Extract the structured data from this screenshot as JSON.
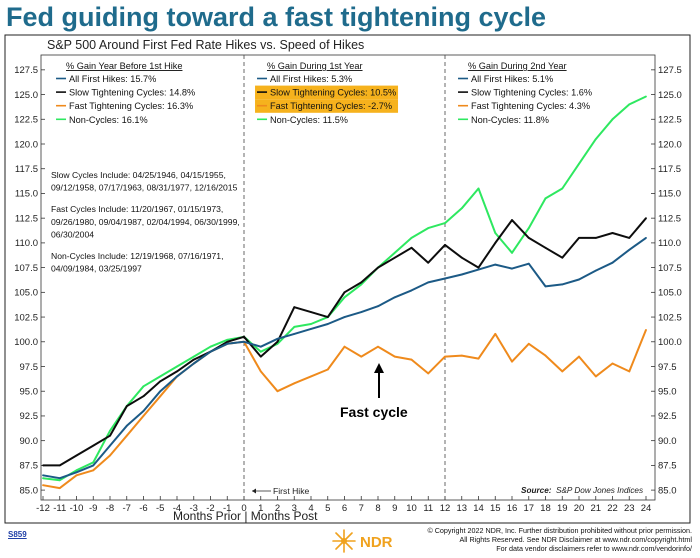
{
  "headline": "Fed guiding toward a fast tightening cycle",
  "chart_data": {
    "type": "line",
    "title": "S&P 500 Around First Fed Rate Hikes vs. Speed of Hikes",
    "xlabel": "Months Prior | Months Post",
    "ylabel": "",
    "xlim": [
      -12,
      24
    ],
    "ylim": [
      84,
      129
    ],
    "x_ticks": [
      -12,
      -11,
      -10,
      -9,
      -8,
      -7,
      -6,
      -5,
      -4,
      -3,
      -2,
      -1,
      0,
      1,
      2,
      3,
      4,
      5,
      6,
      7,
      8,
      9,
      10,
      11,
      12,
      13,
      14,
      15,
      16,
      17,
      18,
      19,
      20,
      21,
      22,
      23,
      24
    ],
    "y_ticks": [
      "85.0",
      "87.5",
      "90.0",
      "92.5",
      "95.0",
      "97.5",
      "100.0",
      "102.5",
      "105.0",
      "107.5",
      "110.0",
      "112.5",
      "115.0",
      "117.5",
      "120.0",
      "122.5",
      "125.0",
      "127.5"
    ],
    "vertical_lines": [
      0,
      12
    ],
    "series": [
      {
        "name": "All First Hikes",
        "color": "#1c5a86",
        "x": [
          -12,
          -11,
          -10,
          -9,
          -8,
          -7,
          -6,
          -5,
          -4,
          -3,
          -2,
          -1,
          0,
          1,
          2,
          3,
          4,
          5,
          6,
          7,
          8,
          9,
          10,
          11,
          12,
          13,
          14,
          15,
          16,
          17,
          18,
          19,
          20,
          21,
          22,
          23,
          24
        ],
        "values": [
          86.5,
          86.2,
          86.8,
          87.5,
          89.5,
          91.5,
          93.0,
          95.0,
          96.5,
          97.8,
          99.0,
          99.8,
          100.0,
          99.5,
          100.3,
          100.8,
          101.3,
          101.8,
          102.5,
          103.0,
          103.6,
          104.5,
          105.2,
          106.0,
          106.4,
          106.8,
          107.3,
          107.8,
          107.4,
          107.9,
          105.6,
          105.8,
          106.3,
          107.2,
          108.0,
          109.3,
          110.5
        ]
      },
      {
        "name": "Slow Tightening Cycles",
        "color": "#0d0d0d",
        "x": [
          -12,
          -11,
          -10,
          -9,
          -8,
          -7,
          -6,
          -5,
          -4,
          -3,
          -2,
          -1,
          0,
          1,
          2,
          3,
          4,
          5,
          6,
          7,
          8,
          9,
          10,
          11,
          12,
          13,
          14,
          15,
          16,
          17,
          18,
          19,
          20,
          21,
          22,
          23,
          24
        ],
        "values": [
          87.5,
          87.5,
          88.5,
          89.5,
          90.5,
          93.5,
          94.5,
          96.0,
          97.0,
          98.2,
          99.0,
          100.0,
          100.5,
          98.5,
          100.0,
          103.5,
          103.0,
          102.5,
          105.0,
          106.0,
          107.5,
          108.5,
          109.5,
          108.0,
          109.8,
          108.5,
          107.5,
          110.0,
          112.3,
          110.5,
          109.5,
          108.5,
          110.5,
          110.5,
          111.0,
          110.5,
          112.5
        ]
      },
      {
        "name": "Fast Tightening Cycles",
        "color": "#ef8a1c",
        "x": [
          -12,
          -11,
          -10,
          -9,
          -8,
          -7,
          -6,
          -5,
          -4,
          -3,
          -2,
          -1,
          0,
          1,
          2,
          3,
          4,
          5,
          6,
          7,
          8,
          9,
          10,
          11,
          12,
          13,
          14,
          15,
          16,
          17,
          18,
          19,
          20,
          21,
          22,
          23,
          24
        ],
        "values": [
          85.5,
          85.2,
          86.5,
          87.0,
          88.5,
          90.5,
          92.5,
          94.5,
          96.5,
          97.8,
          99.0,
          99.8,
          100.0,
          97.0,
          95.0,
          95.8,
          96.5,
          97.2,
          99.5,
          98.5,
          99.5,
          98.5,
          98.2,
          96.8,
          98.5,
          98.6,
          98.3,
          100.8,
          98.0,
          99.8,
          98.6,
          97.0,
          98.5,
          96.5,
          97.8,
          97.0,
          101.2
        ]
      },
      {
        "name": "Non-Cycles",
        "color": "#2ee860",
        "x": [
          -12,
          -11,
          -10,
          -9,
          -8,
          -7,
          -6,
          -5,
          -4,
          -3,
          -2,
          -1,
          0,
          1,
          2,
          3,
          4,
          5,
          6,
          7,
          8,
          9,
          10,
          11,
          12,
          13,
          14,
          15,
          16,
          17,
          18,
          19,
          20,
          21,
          22,
          23,
          24
        ],
        "values": [
          86.2,
          86.0,
          87.0,
          87.8,
          91.0,
          93.5,
          95.5,
          96.5,
          97.5,
          98.5,
          99.5,
          100.2,
          100.5,
          99.0,
          99.8,
          101.5,
          101.8,
          102.5,
          104.5,
          105.8,
          107.5,
          109.0,
          110.5,
          111.5,
          112.0,
          113.5,
          115.5,
          111.0,
          109.0,
          111.5,
          114.5,
          115.5,
          118.0,
          120.5,
          122.5,
          124.0,
          124.8
        ]
      }
    ],
    "legends": [
      {
        "heading": "% Gain Year Before 1st Hike",
        "entries": [
          "All First Hikes: 15.7%",
          "Slow Tightening Cycles: 14.8%",
          "Fast Tightening Cycles: 16.3%",
          "Non-Cycles: 16.1%"
        ],
        "highlighted": []
      },
      {
        "heading": "% Gain During 1st Year",
        "entries": [
          "All First Hikes: 5.3%",
          "Slow Tightening Cycles: 10.5%",
          "Fast Tightening Cycles: -2.7%",
          "Non-Cycles: 11.5%"
        ],
        "highlighted": [
          1,
          2
        ]
      },
      {
        "heading": "% Gain During 2nd Year",
        "entries": [
          "All First Hikes: 5.1%",
          "Slow Tightening Cycles: 1.6%",
          "Fast Tightening Cycles: 4.3%",
          "Non-Cycles: 11.8%"
        ],
        "highlighted": []
      }
    ],
    "notes": [
      [
        "Slow Cycles Include: 04/25/1946, 04/15/1955,",
        "09/12/1958, 07/17/1963, 08/31/1977, 12/16/2015"
      ],
      [
        "Fast Cycles Include: 11/20/1967, 01/15/1973,",
        "09/26/1980, 09/04/1987, 02/04/1994, 06/30/1999,",
        "06/30/2004"
      ],
      [
        "Non-Cycles Include: 12/19/1968, 07/16/1971,",
        "04/09/1984, 03/25/1997"
      ]
    ],
    "annotations": {
      "first_hike_label": "First Hike",
      "callout": "Fast cycle",
      "source_label": "Source:",
      "source_text": "S&P Dow Jones Indices"
    },
    "highlight_color": "#f6b21d"
  },
  "footer": {
    "chart_id": "S859",
    "copyright_lines": [
      "© Copyright 2022 NDR, Inc. Further distribution prohibited without prior permission.",
      "All Rights Reserved. See NDR Disclaimer at www.ndr.com/copyright.html",
      "For data vendor disclaimers refer to www.ndr.com/vendorinfo/"
    ],
    "logo_text": "NDR"
  }
}
